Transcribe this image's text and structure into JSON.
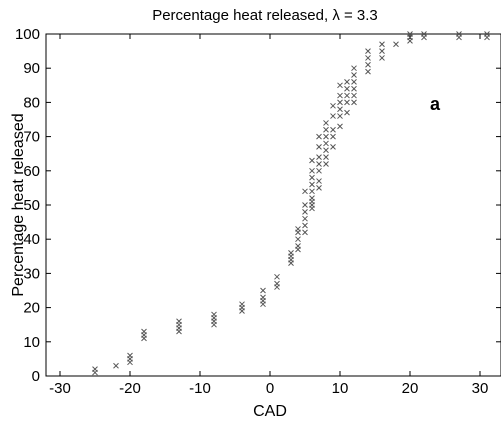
{
  "chart_data": {
    "type": "scatter",
    "title": "Percentage heat released, λ = 3.3",
    "xlabel": "CAD",
    "ylabel": "Percentage heat released",
    "panel_label": "a",
    "xlim": [
      -32,
      33
    ],
    "ylim": [
      0,
      100
    ],
    "xticks": [
      -30,
      -20,
      -10,
      0,
      10,
      20,
      30
    ],
    "yticks": [
      0,
      10,
      20,
      30,
      40,
      50,
      60,
      70,
      80,
      90,
      100
    ],
    "grid": false,
    "marker": "x",
    "marker_color": "#555555",
    "series": [
      {
        "points": [
          [
            -25,
            1
          ],
          [
            -25,
            2
          ],
          [
            -22,
            3
          ],
          [
            -20,
            4
          ],
          [
            -20,
            5
          ],
          [
            -20,
            6
          ],
          [
            -18,
            11
          ],
          [
            -18,
            12
          ],
          [
            -18,
            13
          ],
          [
            -13,
            13
          ],
          [
            -13,
            14
          ],
          [
            -13,
            15
          ],
          [
            -13,
            16
          ],
          [
            -8,
            15
          ],
          [
            -8,
            16
          ],
          [
            -8,
            17
          ],
          [
            -8,
            18
          ],
          [
            -4,
            19
          ],
          [
            -4,
            20
          ],
          [
            -4,
            21
          ],
          [
            -1,
            21
          ],
          [
            -1,
            22
          ],
          [
            -1,
            23
          ],
          [
            -1,
            25
          ],
          [
            1,
            26
          ],
          [
            1,
            27
          ],
          [
            1,
            29
          ],
          [
            3,
            33
          ],
          [
            3,
            34
          ],
          [
            3,
            35
          ],
          [
            3,
            36
          ],
          [
            4,
            37
          ],
          [
            4,
            38
          ],
          [
            4,
            40
          ],
          [
            4,
            42
          ],
          [
            4,
            43
          ],
          [
            5,
            42
          ],
          [
            5,
            44
          ],
          [
            5,
            46
          ],
          [
            5,
            48
          ],
          [
            5,
            50
          ],
          [
            5,
            54
          ],
          [
            6,
            49
          ],
          [
            6,
            50
          ],
          [
            6,
            51
          ],
          [
            6,
            52
          ],
          [
            6,
            54
          ],
          [
            6,
            56
          ],
          [
            6,
            58
          ],
          [
            6,
            60
          ],
          [
            6,
            63
          ],
          [
            7,
            55
          ],
          [
            7,
            57
          ],
          [
            7,
            60
          ],
          [
            7,
            62
          ],
          [
            7,
            64
          ],
          [
            7,
            67
          ],
          [
            7,
            70
          ],
          [
            8,
            62
          ],
          [
            8,
            64
          ],
          [
            8,
            66
          ],
          [
            8,
            68
          ],
          [
            8,
            70
          ],
          [
            8,
            72
          ],
          [
            8,
            74
          ],
          [
            9,
            67
          ],
          [
            9,
            70
          ],
          [
            9,
            72
          ],
          [
            9,
            76
          ],
          [
            9,
            79
          ],
          [
            10,
            73
          ],
          [
            10,
            76
          ],
          [
            10,
            78
          ],
          [
            10,
            80
          ],
          [
            10,
            82
          ],
          [
            10,
            85
          ],
          [
            11,
            77
          ],
          [
            11,
            80
          ],
          [
            11,
            82
          ],
          [
            11,
            84
          ],
          [
            11,
            86
          ],
          [
            12,
            80
          ],
          [
            12,
            82
          ],
          [
            12,
            84
          ],
          [
            12,
            86
          ],
          [
            12,
            88
          ],
          [
            12,
            90
          ],
          [
            14,
            89
          ],
          [
            14,
            91
          ],
          [
            14,
            93
          ],
          [
            14,
            95
          ],
          [
            16,
            93
          ],
          [
            16,
            95
          ],
          [
            16,
            97
          ],
          [
            18,
            97
          ],
          [
            20,
            98
          ],
          [
            20,
            99
          ],
          [
            20,
            100
          ],
          [
            22,
            99
          ],
          [
            22,
            100
          ],
          [
            27,
            99
          ],
          [
            27,
            100
          ],
          [
            31,
            99
          ],
          [
            31,
            100
          ]
        ]
      }
    ]
  }
}
